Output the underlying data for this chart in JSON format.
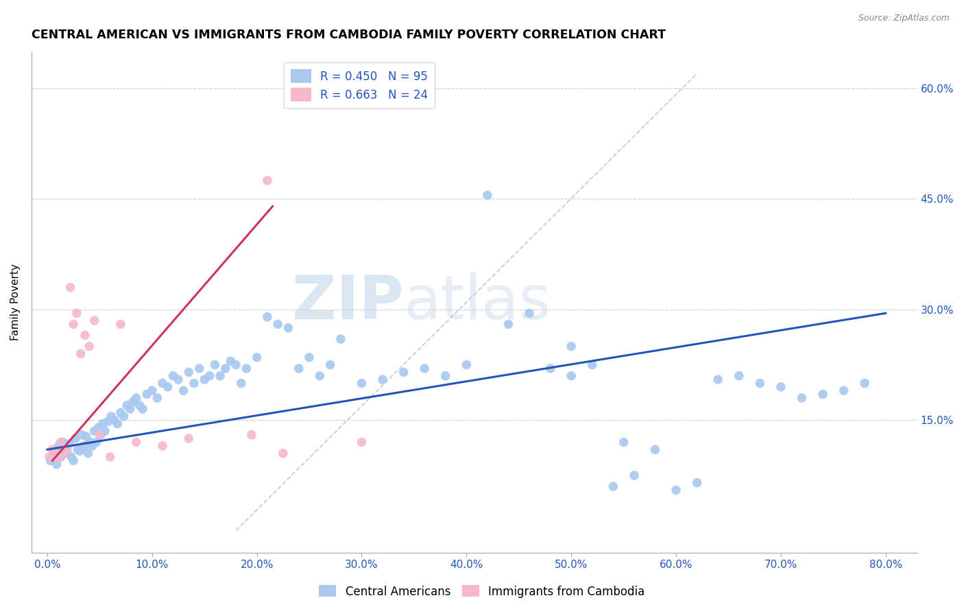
{
  "title": "CENTRAL AMERICAN VS IMMIGRANTS FROM CAMBODIA FAMILY POVERTY CORRELATION CHART",
  "source": "Source: ZipAtlas.com",
  "xlabel_ticks": [
    0.0,
    10.0,
    20.0,
    30.0,
    40.0,
    50.0,
    60.0,
    70.0,
    80.0
  ],
  "ylabel_ticks": [
    15.0,
    30.0,
    45.0,
    60.0
  ],
  "ylabel": "Family Poverty",
  "xlim": [
    -1.5,
    83.0
  ],
  "ylim": [
    -3.0,
    65.0
  ],
  "blue_R": 0.45,
  "blue_N": 95,
  "pink_R": 0.663,
  "pink_N": 24,
  "blue_color": "#a8c8f0",
  "pink_color": "#f5b8c8",
  "blue_line_color": "#2255bb",
  "pink_line_color": "#cc3366",
  "ref_line_color": "#cccccc",
  "legend_label_blue": "R = 0.450   N = 95",
  "legend_label_pink": "R = 0.663   N = 24",
  "bottom_legend_blue": "Central Americans",
  "bottom_legend_pink": "Immigrants from Cambodia",
  "blue_scatter_x": [
    0.3,
    0.5,
    0.7,
    0.9,
    1.1,
    1.3,
    1.5,
    1.7,
    1.9,
    2.1,
    2.3,
    2.5,
    2.7,
    2.9,
    3.1,
    3.3,
    3.5,
    3.7,
    3.9,
    4.1,
    4.3,
    4.5,
    4.7,
    4.9,
    5.1,
    5.3,
    5.5,
    5.8,
    6.1,
    6.4,
    6.7,
    7.0,
    7.3,
    7.6,
    7.9,
    8.2,
    8.5,
    8.8,
    9.1,
    9.5,
    10.0,
    10.5,
    11.0,
    11.5,
    12.0,
    12.5,
    13.0,
    13.5,
    14.0,
    14.5,
    15.0,
    15.5,
    16.0,
    16.5,
    17.0,
    17.5,
    18.0,
    18.5,
    19.0,
    20.0,
    21.0,
    22.0,
    23.0,
    24.0,
    25.0,
    26.0,
    27.0,
    28.0,
    30.0,
    32.0,
    34.0,
    36.0,
    38.0,
    40.0,
    42.0,
    44.0,
    46.0,
    48.0,
    50.0,
    52.0,
    54.0,
    56.0,
    58.0,
    60.0,
    62.0,
    64.0,
    66.0,
    68.0,
    70.0,
    72.0,
    74.0,
    76.0,
    78.0,
    50.0,
    55.0
  ],
  "blue_scatter_y": [
    9.5,
    10.2,
    10.8,
    9.0,
    11.5,
    10.0,
    12.0,
    11.0,
    10.5,
    11.8,
    10.0,
    9.5,
    12.5,
    11.0,
    10.8,
    13.0,
    11.5,
    12.8,
    10.5,
    12.0,
    11.5,
    13.5,
    12.0,
    14.0,
    13.0,
    14.5,
    13.5,
    14.8,
    15.5,
    15.0,
    14.5,
    16.0,
    15.5,
    17.0,
    16.5,
    17.5,
    18.0,
    17.0,
    16.5,
    18.5,
    19.0,
    18.0,
    20.0,
    19.5,
    21.0,
    20.5,
    19.0,
    21.5,
    20.0,
    22.0,
    20.5,
    21.0,
    22.5,
    21.0,
    22.0,
    23.0,
    22.5,
    20.0,
    22.0,
    23.5,
    29.0,
    28.0,
    27.5,
    22.0,
    23.5,
    21.0,
    22.5,
    26.0,
    20.0,
    20.5,
    21.5,
    22.0,
    21.0,
    22.5,
    45.5,
    28.0,
    29.5,
    22.0,
    21.0,
    22.5,
    6.0,
    7.5,
    11.0,
    5.5,
    6.5,
    20.5,
    21.0,
    20.0,
    19.5,
    18.0,
    18.5,
    19.0,
    20.0,
    25.0,
    12.0
  ],
  "pink_scatter_x": [
    0.2,
    0.5,
    0.8,
    1.0,
    1.3,
    1.6,
    1.9,
    2.2,
    2.5,
    2.8,
    3.2,
    3.6,
    4.0,
    4.5,
    5.0,
    6.0,
    7.0,
    8.5,
    11.0,
    13.5,
    19.5,
    21.0,
    22.5,
    30.0
  ],
  "pink_scatter_y": [
    10.0,
    11.0,
    10.5,
    9.8,
    12.0,
    10.5,
    11.0,
    33.0,
    28.0,
    29.5,
    24.0,
    26.5,
    25.0,
    28.5,
    13.0,
    10.0,
    28.0,
    12.0,
    11.5,
    12.5,
    13.0,
    47.5,
    10.5,
    12.0
  ],
  "blue_trend_x": [
    0.0,
    80.0
  ],
  "blue_trend_y": [
    11.0,
    29.5
  ],
  "pink_trend_x": [
    0.5,
    21.5
  ],
  "pink_trend_y": [
    9.5,
    44.0
  ],
  "ref_line_x": [
    18.0,
    62.0
  ],
  "ref_line_y": [
    0.0,
    62.0
  ],
  "watermark_line1": "ZIP",
  "watermark_line2": "atlas",
  "marker_size": 95,
  "title_fontsize": 12.5,
  "axis_label_fontsize": 11,
  "tick_fontsize": 11,
  "legend_fontsize": 12
}
